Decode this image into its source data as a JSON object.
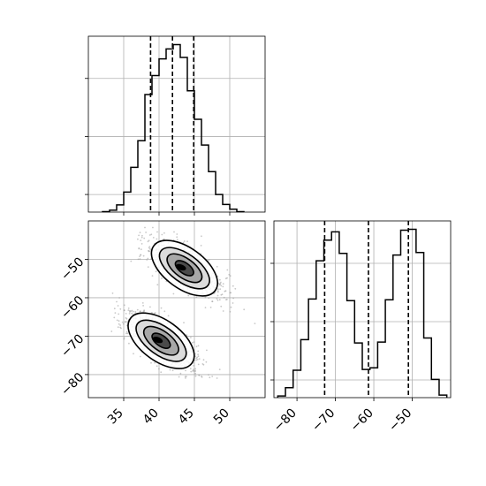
{
  "chart_data": [
    {
      "panel": "top-left",
      "type": "histogram",
      "x": {
        "range": [
          30,
          55
        ],
        "ticks": [
          35,
          40,
          45,
          50
        ],
        "tick_labels_shown": false
      },
      "y": {
        "tick_labels_shown": false
      },
      "grid": true,
      "quantile_lines": [
        38.8,
        41.9,
        44.9
      ],
      "bins": {
        "centers": [
          32.5,
          33.5,
          34.5,
          35.5,
          36.5,
          37.5,
          38.5,
          39.5,
          40.5,
          41.5,
          42.5,
          43.5,
          44.5,
          45.5,
          46.5,
          47.5,
          48.5,
          49.5,
          50.5,
          51.5
        ],
        "counts": [
          0.1,
          0.4,
          1.5,
          4.2,
          9.4,
          15.0,
          24.7,
          28.7,
          32.2,
          34.3,
          35.2,
          32.5,
          25.5,
          19.5,
          14.1,
          8.5,
          3.7,
          1.6,
          0.6,
          0.1
        ]
      }
    },
    {
      "panel": "bottom-left",
      "type": "scatter_with_density_contours",
      "x": {
        "range": [
          30,
          55
        ],
        "ticks": [
          35,
          40,
          45,
          50
        ],
        "tick_labels": [
          "35",
          "40",
          "45",
          "50"
        ]
      },
      "y": {
        "range": [
          -86,
          -40
        ],
        "ticks": [
          -50,
          -60,
          -70,
          -80
        ],
        "tick_labels": [
          "−50",
          "−60",
          "−70",
          "−80"
        ]
      },
      "grid": true,
      "modes": [
        {
          "center_x": 43.6,
          "center_y": -52.3
        },
        {
          "center_x": 40.3,
          "center_y": -71.2
        }
      ]
    },
    {
      "panel": "bottom-right",
      "type": "histogram",
      "x": {
        "range": [
          -86,
          -40
        ],
        "ticks": [
          -80,
          -70,
          -60,
          -50
        ],
        "tick_labels": [
          "−80",
          "−70",
          "−60",
          "−50"
        ]
      },
      "y": {
        "tick_labels_shown": false
      },
      "grid": true,
      "quantile_lines": [
        -72.8,
        -61.4,
        -51.0
      ],
      "bins": {
        "centers": [
          -84,
          -82,
          -80,
          -78,
          -76,
          -74,
          -72,
          -70,
          -68,
          -66,
          -64,
          -62,
          -60,
          -58,
          -56,
          -54,
          -52,
          -50,
          -48,
          -46,
          -44,
          -42
        ],
        "counts": [
          0.2,
          1.2,
          3.3,
          7.0,
          11.9,
          16.5,
          19.0,
          20.0,
          17.4,
          11.7,
          6.6,
          3.4,
          3.6,
          6.7,
          11.8,
          17.2,
          20.2,
          20.3,
          17.5,
          7.2,
          2.2,
          0.3
        ]
      }
    }
  ]
}
